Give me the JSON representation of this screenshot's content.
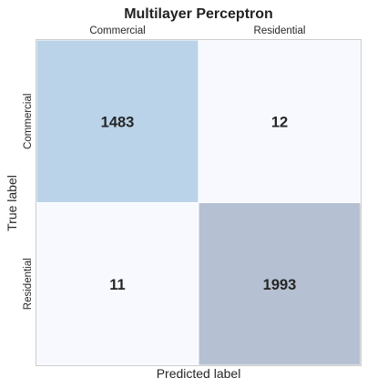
{
  "chart_data": {
    "type": "heatmap",
    "title": "Multilayer Perceptron",
    "xlabel": "Predicted label",
    "ylabel": "True label",
    "x_categories": [
      "Commercial",
      "Residential"
    ],
    "y_categories": [
      "Commercial",
      "Residential"
    ],
    "values": [
      [
        1483,
        12
      ],
      [
        11,
        1993
      ]
    ],
    "x_tick_position": "top",
    "grid": false
  },
  "colors": {
    "cell_high_primary": "#bad3e8",
    "cell_high_secondary": "#b5c0d2",
    "cell_low": "#f7f9fe",
    "border": "#cccccc"
  }
}
